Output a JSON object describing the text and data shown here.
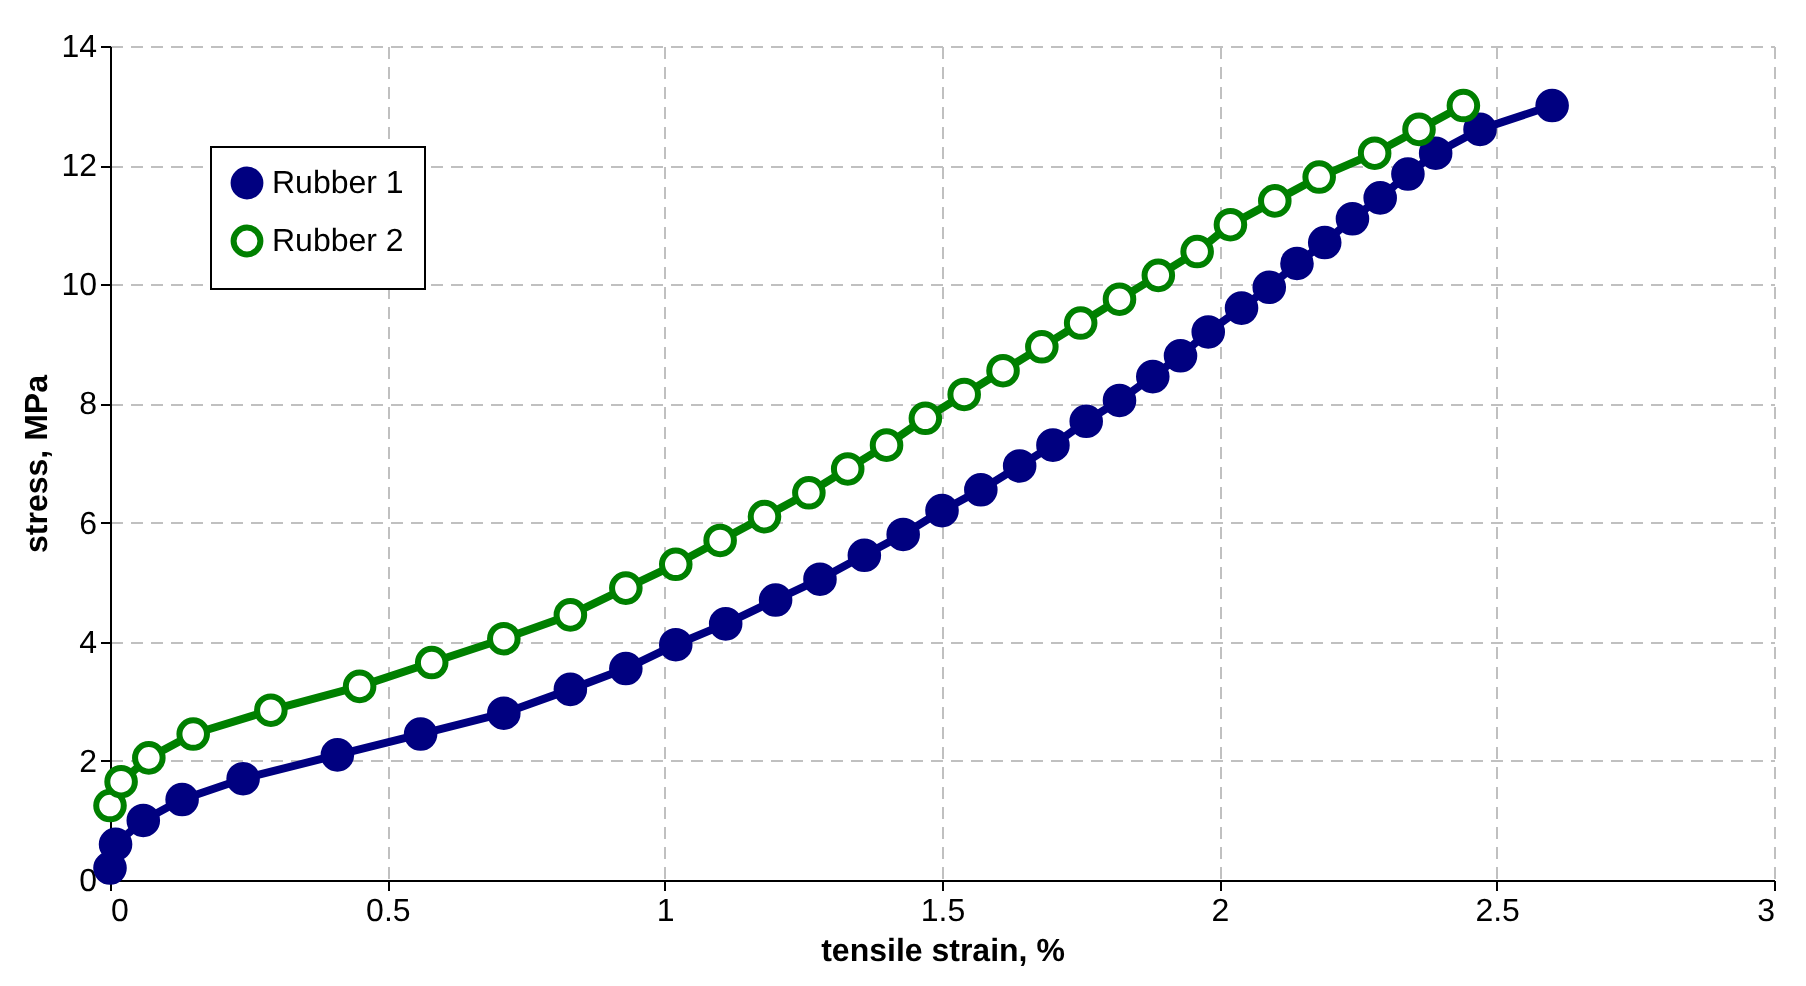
{
  "chart_data": {
    "type": "line",
    "xlabel": "tensile strain, %",
    "ylabel": "stress, MPa",
    "xlim": [
      0,
      3
    ],
    "xticks": [
      0,
      0.5,
      1,
      1.5,
      2,
      2.5,
      3
    ],
    "ylim": [
      0,
      14
    ],
    "yticks": [
      0,
      2,
      4,
      6,
      8,
      10,
      12,
      14
    ],
    "grid": true,
    "legend": "top left",
    "marker": "circle",
    "line_style": "solid",
    "series": [
      {
        "name": "Rubber 1",
        "color": "#000080",
        "x": [
          0,
          0.01,
          0.06,
          0.13,
          0.24,
          0.41,
          0.56,
          0.71,
          0.83,
          0.93,
          1.02,
          1.11,
          1.2,
          1.28,
          1.36,
          1.43,
          1.5,
          1.57,
          1.64,
          1.7,
          1.76,
          1.82,
          1.88,
          1.93,
          1.98,
          2.04,
          2.09,
          2.14,
          2.19,
          2.24,
          2.29,
          2.34,
          2.39,
          2.47,
          2.6
        ],
        "values": [
          0.2,
          0.6,
          1.0,
          1.35,
          1.7,
          2.1,
          2.45,
          2.8,
          3.2,
          3.55,
          3.95,
          4.3,
          4.7,
          5.05,
          5.45,
          5.8,
          6.2,
          6.55,
          6.95,
          7.3,
          7.7,
          8.05,
          8.45,
          8.8,
          9.2,
          9.6,
          9.95,
          10.35,
          10.7,
          11.1,
          11.45,
          11.85,
          12.2,
          12.6,
          13.0
        ]
      },
      {
        "name": "Rubber 2",
        "color": "#008000",
        "x": [
          0,
          0.02,
          0.07,
          0.15,
          0.29,
          0.45,
          0.58,
          0.71,
          0.83,
          0.93,
          1.02,
          1.1,
          1.18,
          1.26,
          1.33,
          1.4,
          1.47,
          1.54,
          1.61,
          1.68,
          1.75,
          1.82,
          1.89,
          1.96,
          2.02,
          2.1,
          2.18,
          2.28,
          2.36,
          2.44
        ],
        "values": [
          1.25,
          1.65,
          2.05,
          2.45,
          2.85,
          3.25,
          3.65,
          4.05,
          4.45,
          4.9,
          5.3,
          5.7,
          6.1,
          6.5,
          6.9,
          7.3,
          7.75,
          8.15,
          8.55,
          8.95,
          9.35,
          9.75,
          10.15,
          10.55,
          11.0,
          11.4,
          11.8,
          12.2,
          12.6,
          13.0
        ]
      }
    ]
  }
}
